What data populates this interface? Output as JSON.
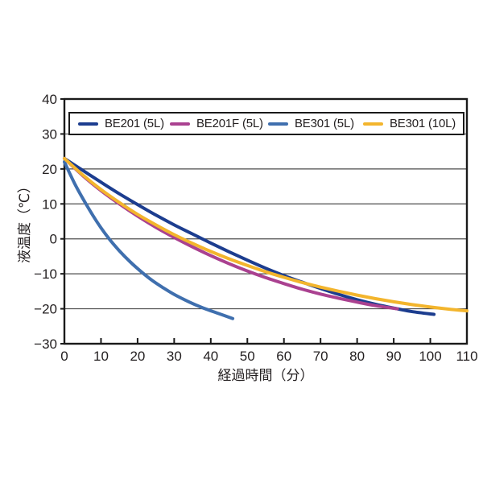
{
  "page": {
    "background": "#ffffff"
  },
  "chart_data": {
    "type": "line",
    "title": "",
    "xlabel": "経過時間（分）",
    "ylabel": "液温度（℃）",
    "xlim": [
      0,
      110
    ],
    "ylim": [
      -30,
      40
    ],
    "xticks": [
      0,
      10,
      20,
      30,
      40,
      50,
      60,
      70,
      80,
      90,
      100,
      110
    ],
    "yticks": [
      40,
      30,
      20,
      10,
      0,
      -10,
      -20,
      -30
    ],
    "grid": "horizontal-only",
    "legend_position": "top-inside-full-width",
    "axis_color": "#1a1a1a",
    "grid_color": "#4d4d4d",
    "line_width": 4,
    "series": [
      {
        "name": "BE201 (5L)",
        "color": "#1c3d8f",
        "points": [
          [
            0,
            23
          ],
          [
            5,
            19.6
          ],
          [
            10,
            16.2
          ],
          [
            15,
            12.9
          ],
          [
            20,
            9.8
          ],
          [
            25,
            6.8
          ],
          [
            30,
            4.0
          ],
          [
            35,
            1.4
          ],
          [
            40,
            -1.2
          ],
          [
            45,
            -3.7
          ],
          [
            50,
            -6.1
          ],
          [
            55,
            -8.4
          ],
          [
            60,
            -10.5
          ],
          [
            65,
            -12.4
          ],
          [
            70,
            -14.2
          ],
          [
            75,
            -15.9
          ],
          [
            80,
            -17.4
          ],
          [
            85,
            -18.7
          ],
          [
            90,
            -19.8
          ],
          [
            95,
            -20.8
          ],
          [
            101,
            -21.6
          ]
        ]
      },
      {
        "name": "BE201F (5L)",
        "color": "#aa4190",
        "points": [
          [
            0,
            23
          ],
          [
            5,
            18.1
          ],
          [
            10,
            13.8
          ],
          [
            15,
            10.0
          ],
          [
            20,
            6.5
          ],
          [
            25,
            3.3
          ],
          [
            30,
            0.4
          ],
          [
            35,
            -2.3
          ],
          [
            40,
            -4.8
          ],
          [
            45,
            -7.1
          ],
          [
            50,
            -9.2
          ],
          [
            55,
            -11.1
          ],
          [
            60,
            -12.8
          ],
          [
            65,
            -14.4
          ],
          [
            70,
            -15.8
          ],
          [
            75,
            -17.0
          ],
          [
            80,
            -18.1
          ],
          [
            85,
            -19.1
          ],
          [
            91,
            -20.0
          ]
        ]
      },
      {
        "name": "BE301 (5L)",
        "color": "#3f6fae",
        "points": [
          [
            0,
            22
          ],
          [
            3,
            15.4
          ],
          [
            6,
            9.8
          ],
          [
            9,
            4.7
          ],
          [
            12,
            0.3
          ],
          [
            15,
            -3.4
          ],
          [
            18,
            -6.6
          ],
          [
            21,
            -9.4
          ],
          [
            24,
            -11.9
          ],
          [
            27,
            -14.0
          ],
          [
            30,
            -15.9
          ],
          [
            34,
            -18.0
          ],
          [
            38,
            -19.8
          ],
          [
            42,
            -21.3
          ],
          [
            46,
            -22.8
          ]
        ]
      },
      {
        "name": "BE301 (10L)",
        "color": "#f3b52d",
        "points": [
          [
            0,
            23
          ],
          [
            5,
            18.3
          ],
          [
            10,
            14.1
          ],
          [
            15,
            10.4
          ],
          [
            20,
            7.0
          ],
          [
            25,
            4.0
          ],
          [
            30,
            1.2
          ],
          [
            35,
            -1.3
          ],
          [
            40,
            -3.6
          ],
          [
            45,
            -5.7
          ],
          [
            50,
            -7.6
          ],
          [
            55,
            -9.4
          ],
          [
            60,
            -11.0
          ],
          [
            65,
            -12.5
          ],
          [
            70,
            -13.8
          ],
          [
            75,
            -15.0
          ],
          [
            80,
            -16.1
          ],
          [
            85,
            -17.1
          ],
          [
            90,
            -18.0
          ],
          [
            95,
            -18.8
          ],
          [
            100,
            -19.5
          ],
          [
            105,
            -20.1
          ],
          [
            110,
            -20.6
          ]
        ]
      }
    ]
  }
}
